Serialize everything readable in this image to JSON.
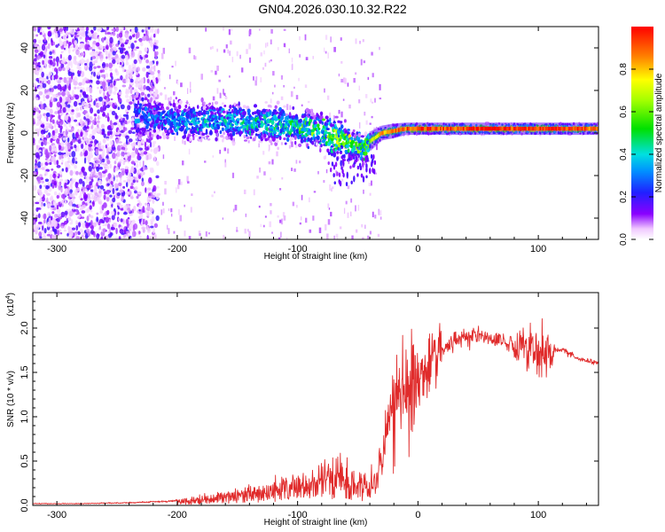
{
  "title": "GN04.2026.030.10.32.R22",
  "colors": {
    "line": "#e02b2b",
    "frame": "#000000",
    "background": "#ffffff"
  },
  "chart_data": [
    {
      "type": "heatmap",
      "title": "GN04.2026.030.10.32.R22",
      "xlabel": "Height of straight line (km)",
      "ylabel": "Frequency (Hz)",
      "xlim": [
        -320,
        150
      ],
      "ylim": [
        -50,
        50
      ],
      "xticks": [
        -300,
        -200,
        -100,
        0,
        100
      ],
      "xtick_labels": [
        "-300",
        "-200",
        "-100",
        "0",
        "100"
      ],
      "yticks": [
        -40,
        -20,
        0,
        20,
        40
      ],
      "ytick_labels": [
        "-40",
        "-20",
        "0",
        "20",
        "40"
      ],
      "colorbar": {
        "label": "Normalized spectral amplitude",
        "range": [
          0,
          1
        ],
        "ticks": [
          0.0,
          0.2,
          0.4,
          0.6,
          0.8
        ],
        "tick_labels": [
          "0.0",
          "0.2",
          "0.4",
          "0.6",
          "0.8"
        ]
      },
      "ridge": {
        "x": [
          -230,
          -200,
          -150,
          -120,
          -100,
          -80,
          -70,
          -60,
          -50,
          -45,
          -40,
          -30,
          -20,
          -10,
          0,
          20,
          50,
          80,
          100,
          120,
          150
        ],
        "center_freq": [
          8,
          6,
          5,
          4,
          3,
          1,
          -2,
          -4,
          -6,
          -8,
          -4,
          0,
          1,
          2,
          2,
          2,
          2,
          2,
          2,
          2,
          2
        ],
        "half_width": [
          12,
          10,
          9,
          9,
          9,
          9,
          10,
          9,
          8,
          7,
          4,
          3,
          3,
          2.5,
          2.5,
          2.5,
          2.5,
          2.5,
          2.5,
          2.5,
          2.5
        ],
        "peak_amplitude": [
          0.3,
          0.35,
          0.4,
          0.45,
          0.5,
          0.55,
          0.6,
          0.65,
          0.6,
          0.5,
          0.7,
          0.85,
          0.9,
          0.95,
          1.0,
          0.95,
          1.0,
          1.0,
          1.0,
          1.0,
          0.9
        ]
      }
    },
    {
      "type": "line",
      "xlabel": "Height of straight line (km)",
      "ylabel": "SNR (10 * v/v)",
      "y_multiplier_label": "(x10",
      "y_multiplier_exponent": "4",
      "y_multiplier_close": ")",
      "xlim": [
        -320,
        150
      ],
      "ylim": [
        0,
        2.4
      ],
      "xticks": [
        -300,
        -200,
        -100,
        0,
        100
      ],
      "xtick_labels": [
        "-300",
        "-200",
        "-100",
        "0",
        "100"
      ],
      "yticks": [
        0.0,
        0.5,
        1.0,
        1.5,
        2.0
      ],
      "ytick_labels": [
        "0.0",
        "0.5",
        "1.0",
        "1.5",
        "2.0"
      ],
      "series": [
        {
          "name": "SNR",
          "x": [
            -320,
            -280,
            -240,
            -200,
            -170,
            -150,
            -130,
            -110,
            -100,
            -90,
            -80,
            -70,
            -60,
            -50,
            -40,
            -35,
            -30,
            -25,
            -20,
            -15,
            -10,
            -5,
            0,
            10,
            20,
            30,
            40,
            50,
            60,
            70,
            80,
            90,
            95,
            100,
            110,
            120,
            130,
            140,
            150
          ],
          "y": [
            0.02,
            0.02,
            0.03,
            0.05,
            0.08,
            0.12,
            0.15,
            0.2,
            0.22,
            0.25,
            0.3,
            0.35,
            0.3,
            0.25,
            0.2,
            0.3,
            0.5,
            0.9,
            1.1,
            1.3,
            1.2,
            1.3,
            1.4,
            1.6,
            1.75,
            1.85,
            1.9,
            1.92,
            1.88,
            1.85,
            1.82,
            1.78,
            1.75,
            1.72,
            1.75,
            1.75,
            1.68,
            1.63,
            1.6
          ]
        }
      ]
    }
  ]
}
